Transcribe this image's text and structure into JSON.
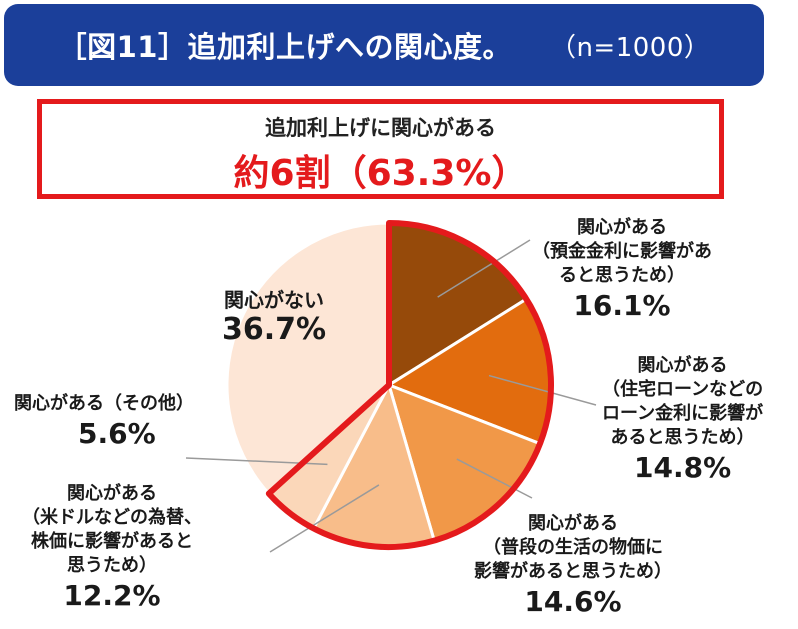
{
  "header": {
    "title": "［図11］追加利上げへの関心度。",
    "n": "（n=1000）"
  },
  "highlight": {
    "sub": "追加利上げに関心がある",
    "big": "約6割（63.3%）"
  },
  "colors": {
    "header_bg": "#1b3f9a",
    "accent_red": "#e41a1c"
  },
  "chart_data": {
    "type": "pie",
    "title": "追加利上げへの関心度",
    "n": 1000,
    "slices": [
      {
        "line1": "関心がある",
        "line2": "（預金金利に影響があ",
        "line3": "ると思うため）",
        "value": 16.1,
        "pct": "16.1%",
        "color": "#964a0a"
      },
      {
        "line1": "関心がある",
        "line2": "（住宅ローンなどの",
        "line3": "ローン金利に影響が",
        "line4": "あると思うため）",
        "value": 14.8,
        "pct": "14.8%",
        "color": "#e26c0e"
      },
      {
        "line1": "関心がある",
        "line2": "（普段の生活の物価に",
        "line3": "影響があると思うため）",
        "value": 14.6,
        "pct": "14.6%",
        "color": "#f19848"
      },
      {
        "line1": "関心がある",
        "line2": "（米ドルなどの為替、",
        "line3": "株価に影響があると",
        "line4": "思うため）",
        "value": 12.2,
        "pct": "12.2%",
        "color": "#f8bd8a"
      },
      {
        "line1": "関心がある（その他）",
        "value": 5.6,
        "pct": "5.6%",
        "color": "#fbd7b9"
      },
      {
        "line1": "関心がない",
        "value": 36.7,
        "pct": "36.7%",
        "color": "#fde6d6"
      }
    ],
    "highlight_group": "関心がある",
    "highlight_total": 63.3
  }
}
